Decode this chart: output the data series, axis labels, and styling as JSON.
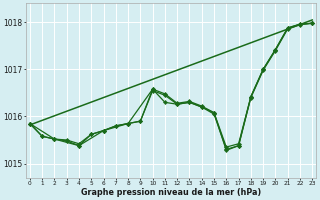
{
  "background_color": "#d6eef2",
  "grid_color": "#ffffff",
  "line_color": "#1a6b1a",
  "ylabel_ticks": [
    1015,
    1016,
    1017,
    1018
  ],
  "xlabel_ticks": [
    0,
    1,
    2,
    3,
    4,
    5,
    6,
    7,
    8,
    9,
    10,
    11,
    12,
    13,
    14,
    15,
    16,
    17,
    18,
    19,
    20,
    21,
    22,
    23
  ],
  "xlabel": "Graphe pression niveau de la mer (hPa)",
  "ylim": [
    1014.7,
    1018.4
  ],
  "xlim": [
    -0.3,
    23.3
  ],
  "series": [
    {
      "x": [
        0,
        23
      ],
      "y": [
        1015.82,
        1018.05
      ],
      "marker": null,
      "markersize": 0,
      "linewidth": 1.1
    },
    {
      "x": [
        0,
        1,
        2,
        3,
        4,
        5,
        6,
        7,
        8,
        9,
        10,
        11,
        12,
        13,
        14,
        15,
        16,
        17,
        18,
        19,
        20,
        21,
        22,
        23
      ],
      "y": [
        1015.85,
        1015.58,
        1015.52,
        1015.5,
        1015.42,
        1015.62,
        1015.7,
        1015.8,
        1015.85,
        1015.9,
        1016.58,
        1016.48,
        1016.28,
        1016.32,
        1016.22,
        1016.08,
        1015.35,
        1015.42,
        1016.42,
        1017.0,
        1017.42,
        1017.88,
        1017.96,
        1017.98
      ],
      "marker": "D",
      "markersize": 2.2,
      "linewidth": 0.9
    },
    {
      "x": [
        0,
        1,
        2,
        3,
        4,
        5,
        6,
        7,
        8,
        9,
        10,
        11,
        12,
        13,
        14,
        15,
        16,
        17,
        18,
        19,
        20,
        21,
        22,
        23
      ],
      "y": [
        1015.85,
        1015.58,
        1015.52,
        1015.48,
        1015.38,
        1015.62,
        1015.7,
        1015.8,
        1015.85,
        1015.9,
        1016.55,
        1016.45,
        1016.26,
        1016.3,
        1016.2,
        1016.05,
        1015.3,
        1015.38,
        1016.4,
        1016.98,
        1017.4,
        1017.86,
        1017.95,
        1017.98
      ],
      "marker": "D",
      "markersize": 2.2,
      "linewidth": 0.9
    },
    {
      "x": [
        0,
        2,
        4,
        6,
        8,
        10,
        11,
        12,
        13,
        14,
        15,
        16,
        17,
        18,
        19,
        20,
        21,
        22,
        23
      ],
      "y": [
        1015.85,
        1015.52,
        1015.38,
        1015.7,
        1015.85,
        1016.58,
        1016.3,
        1016.26,
        1016.3,
        1016.2,
        1016.08,
        1015.28,
        1015.38,
        1016.42,
        1017.0,
        1017.42,
        1017.88,
        1017.96,
        1017.98
      ],
      "marker": "D",
      "markersize": 2.2,
      "linewidth": 0.9
    }
  ]
}
